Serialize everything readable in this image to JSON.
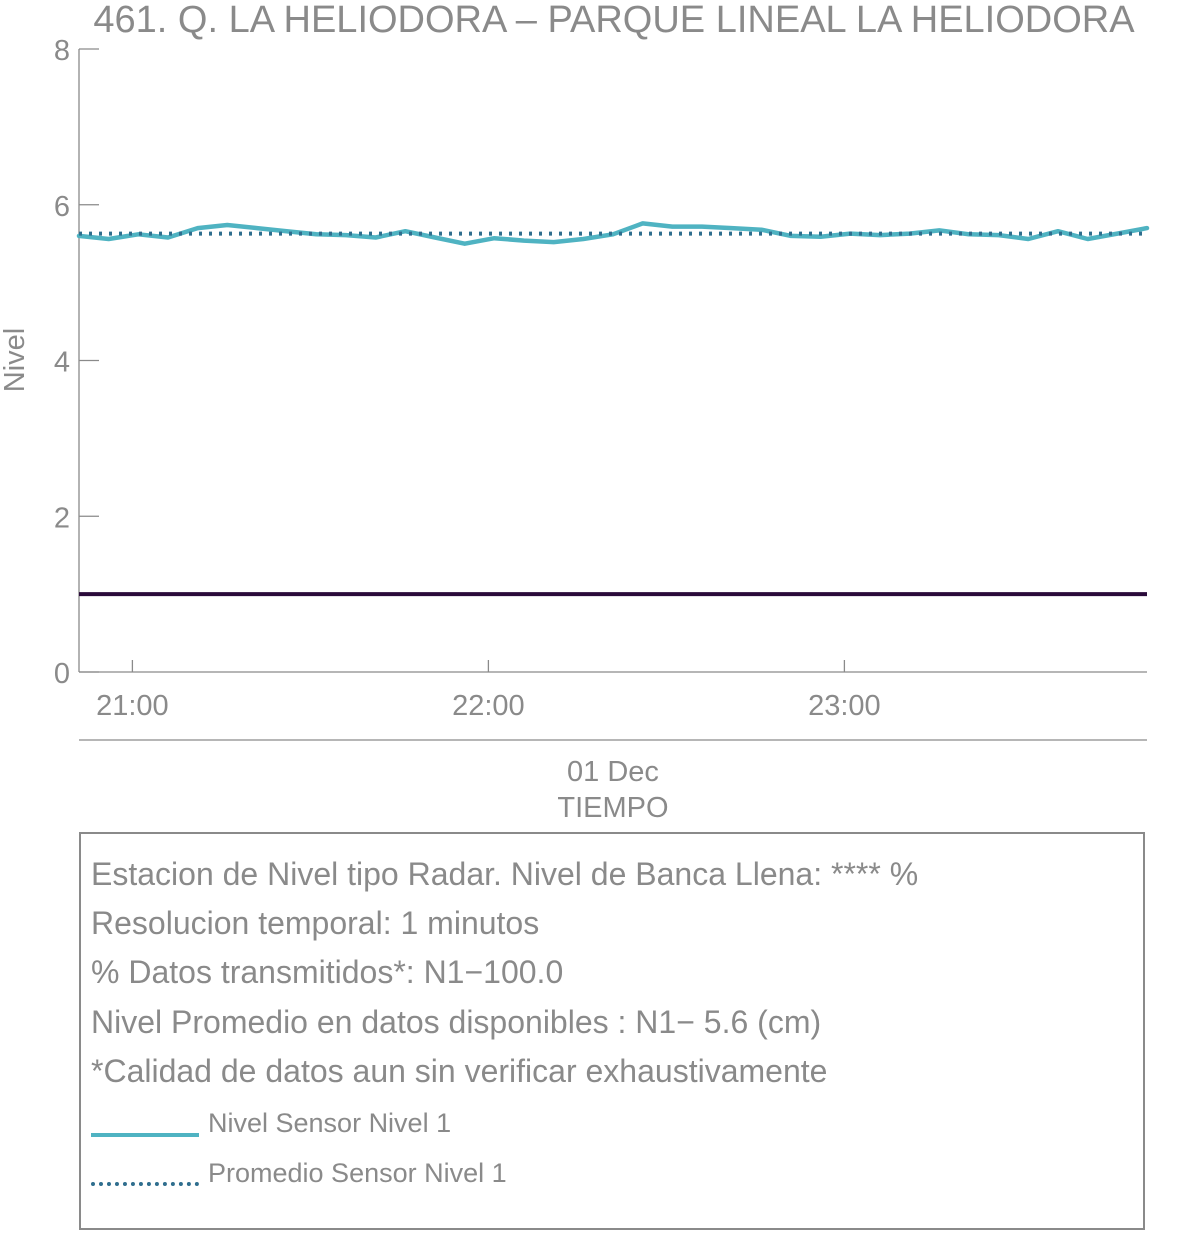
{
  "chart_data": {
    "type": "line",
    "title": "461. Q. LA HELIODORA – PARQUE LINEAL LA HELIODORA",
    "ylabel": "Nivel",
    "xlabel": "TIEMPO",
    "date_label": "01 Dec",
    "ylim": [
      0,
      8
    ],
    "yticks": [
      "0",
      "2",
      "4",
      "6",
      "8"
    ],
    "xlim": [
      "2023-12-01T20:51",
      "2023-12-01T23:51"
    ],
    "xticks": [
      {
        "time": "2023-12-01T21:00",
        "label": "21:00"
      },
      {
        "time": "2023-12-01T22:00",
        "label": "22:00"
      },
      {
        "time": "2023-12-01T23:00",
        "label": "23:00"
      }
    ],
    "series": [
      {
        "name": "Nivel Sensor Nivel 1",
        "color": "#4fb3c2",
        "style": "solid",
        "x": [
          "2023-12-01T20:51",
          "2023-12-01T20:56",
          "2023-12-01T21:01",
          "2023-12-01T21:06",
          "2023-12-01T21:11",
          "2023-12-01T21:16",
          "2023-12-01T21:21",
          "2023-12-01T21:26",
          "2023-12-01T21:31",
          "2023-12-01T21:36",
          "2023-12-01T21:41",
          "2023-12-01T21:46",
          "2023-12-01T21:51",
          "2023-12-01T21:56",
          "2023-12-01T22:01",
          "2023-12-01T22:06",
          "2023-12-01T22:11",
          "2023-12-01T22:16",
          "2023-12-01T22:21",
          "2023-12-01T22:26",
          "2023-12-01T22:31",
          "2023-12-01T22:36",
          "2023-12-01T22:41",
          "2023-12-01T22:46",
          "2023-12-01T22:51",
          "2023-12-01T22:56",
          "2023-12-01T23:01",
          "2023-12-01T23:06",
          "2023-12-01T23:11",
          "2023-12-01T23:16",
          "2023-12-01T23:21",
          "2023-12-01T23:26",
          "2023-12-01T23:31",
          "2023-12-01T23:36",
          "2023-12-01T23:41",
          "2023-12-01T23:46",
          "2023-12-01T23:51"
        ],
        "values": [
          5.6,
          5.56,
          5.62,
          5.58,
          5.7,
          5.74,
          5.7,
          5.66,
          5.62,
          5.61,
          5.58,
          5.66,
          5.58,
          5.5,
          5.57,
          5.54,
          5.52,
          5.56,
          5.62,
          5.76,
          5.72,
          5.72,
          5.7,
          5.68,
          5.6,
          5.59,
          5.63,
          5.61,
          5.63,
          5.67,
          5.62,
          5.61,
          5.56,
          5.66,
          5.56,
          5.63,
          5.7
        ]
      },
      {
        "name": "Promedio Sensor Nivel 1",
        "color": "#2f6e8e",
        "style": "dotted",
        "x": [
          "2023-12-01T20:51",
          "2023-12-01T23:51"
        ],
        "values": [
          5.63,
          5.63
        ]
      },
      {
        "name": "",
        "color": "#2a0a3a",
        "style": "solid",
        "x": [
          "2023-12-01T20:51",
          "2023-12-01T23:51"
        ],
        "values": [
          1.0,
          1.0
        ]
      }
    ]
  },
  "info": {
    "line1": "Estacion de Nivel tipo Radar. Nivel de Banca Llena: **** %",
    "line2": "Resolucion temporal: 1 minutos",
    "line3": "% Datos transmitidos*: N1−100.0",
    "line4": "Nivel Promedio en datos disponibles : N1−  5.6 (cm)",
    "line5": "*Calidad de datos aun sin verificar exhaustivamente"
  },
  "legend": {
    "item1": "Nivel Sensor Nivel 1",
    "item2": "Promedio Sensor Nivel 1"
  }
}
